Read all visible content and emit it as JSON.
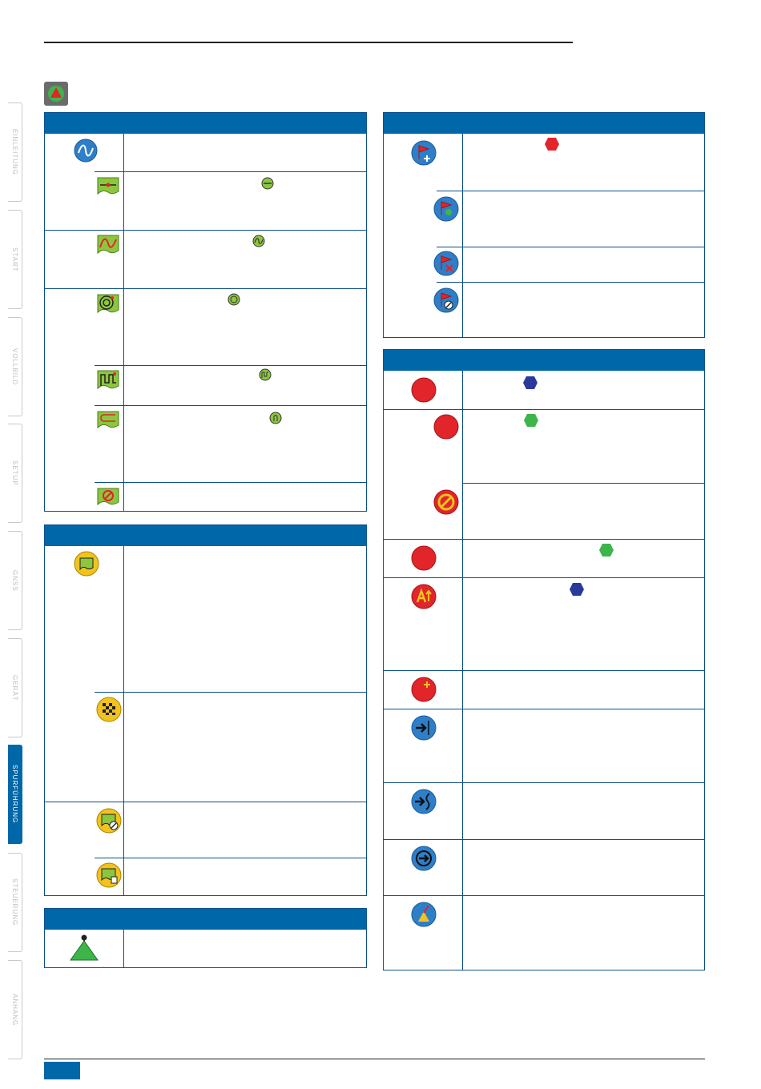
{
  "side_tabs": [
    {
      "label": "EINLEITUNG",
      "active": false
    },
    {
      "label": "START",
      "active": false
    },
    {
      "label": "VOLLBILD",
      "active": false
    },
    {
      "label": "SETUP",
      "active": false
    },
    {
      "label": "GNSS",
      "active": false
    },
    {
      "label": "GERÄT",
      "active": false
    },
    {
      "label": "SPURFÜHRUNG",
      "active": true
    },
    {
      "label": "STEUERUNG",
      "active": false
    },
    {
      "label": "ANHANG",
      "active": false
    }
  ],
  "colors": {
    "accent": "#0067a8",
    "border": "#0c4f8b",
    "icon_blue": "#2e7fc8",
    "icon_green": "#8cc63f",
    "icon_yellow": "#f2c31c",
    "icon_red": "#e2242b",
    "hex_red": "#e2242b",
    "hex_blue": "#2a3a9a",
    "hex_green": "#3db54a"
  },
  "icons": {
    "page": "guidance-mode-icon",
    "left_panel_1": [
      "guidance-mode-icon",
      "straight-ab-icon",
      "curved-ab-icon",
      "circle-pivot-icon",
      "last-pass-icon",
      "adaptive-curve-icon",
      "no-guidance-icon"
    ],
    "left_panel_2": [
      "boundary-icon",
      "checkered-flag-icon",
      "boundary-cancel-icon",
      "boundary-delete-icon"
    ],
    "left_panel_3": [
      "vehicle-triangle-icon"
    ],
    "right_panel_1": [
      "flag-add-icon",
      "flag-return-icon",
      "flag-delete-icon",
      "flag-cancel-icon"
    ],
    "right_panel_2": [
      "mark-a-icon",
      "mark-b-icon",
      "mark-cancel-icon",
      "mark-b-single-icon",
      "a-plus-nudge-icon",
      "add-point-icon",
      "shift-line-icon",
      "swath-shift-icon",
      "return-icon",
      "azimuth-icon"
    ]
  }
}
